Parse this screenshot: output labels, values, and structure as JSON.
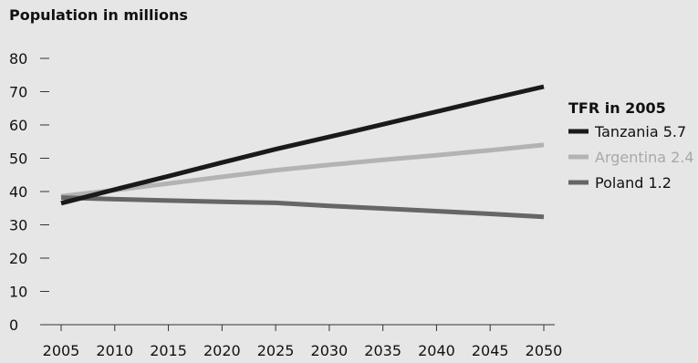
{
  "chart_data": {
    "type": "line",
    "title": "Population in millions",
    "xlabel": "",
    "ylabel": "",
    "x": [
      2005,
      2010,
      2015,
      2020,
      2025,
      2030,
      2035,
      2040,
      2045,
      2050
    ],
    "xticks": [
      "2005",
      "2010",
      "2015",
      "2020",
      "2025",
      "2030",
      "2035",
      "2040",
      "2045",
      "2050"
    ],
    "yticks": [
      "0",
      "10",
      "20",
      "30",
      "40",
      "50",
      "60",
      "70",
      "80"
    ],
    "ylim": [
      0,
      80
    ],
    "grid": false,
    "legend": {
      "title": "TFR in 2005",
      "placement": "right"
    },
    "series": [
      {
        "name": "Tanzania 5.7",
        "color": "#1a1a1a",
        "values": [
          36.5,
          40.6,
          44.6,
          48.7,
          52.7,
          56.4,
          60.2,
          64.0,
          67.8,
          71.5
        ]
      },
      {
        "name": "Argentina 2.4",
        "color": "#b3b3b3",
        "values": [
          38.6,
          40.4,
          42.4,
          44.4,
          46.4,
          48.0,
          49.5,
          50.9,
          52.4,
          54.0
        ]
      },
      {
        "name": "Poland 1.2",
        "color": "#666666",
        "values": [
          38.2,
          37.7,
          37.3,
          36.9,
          36.6,
          35.7,
          34.9,
          34.1,
          33.3,
          32.4
        ]
      }
    ]
  }
}
